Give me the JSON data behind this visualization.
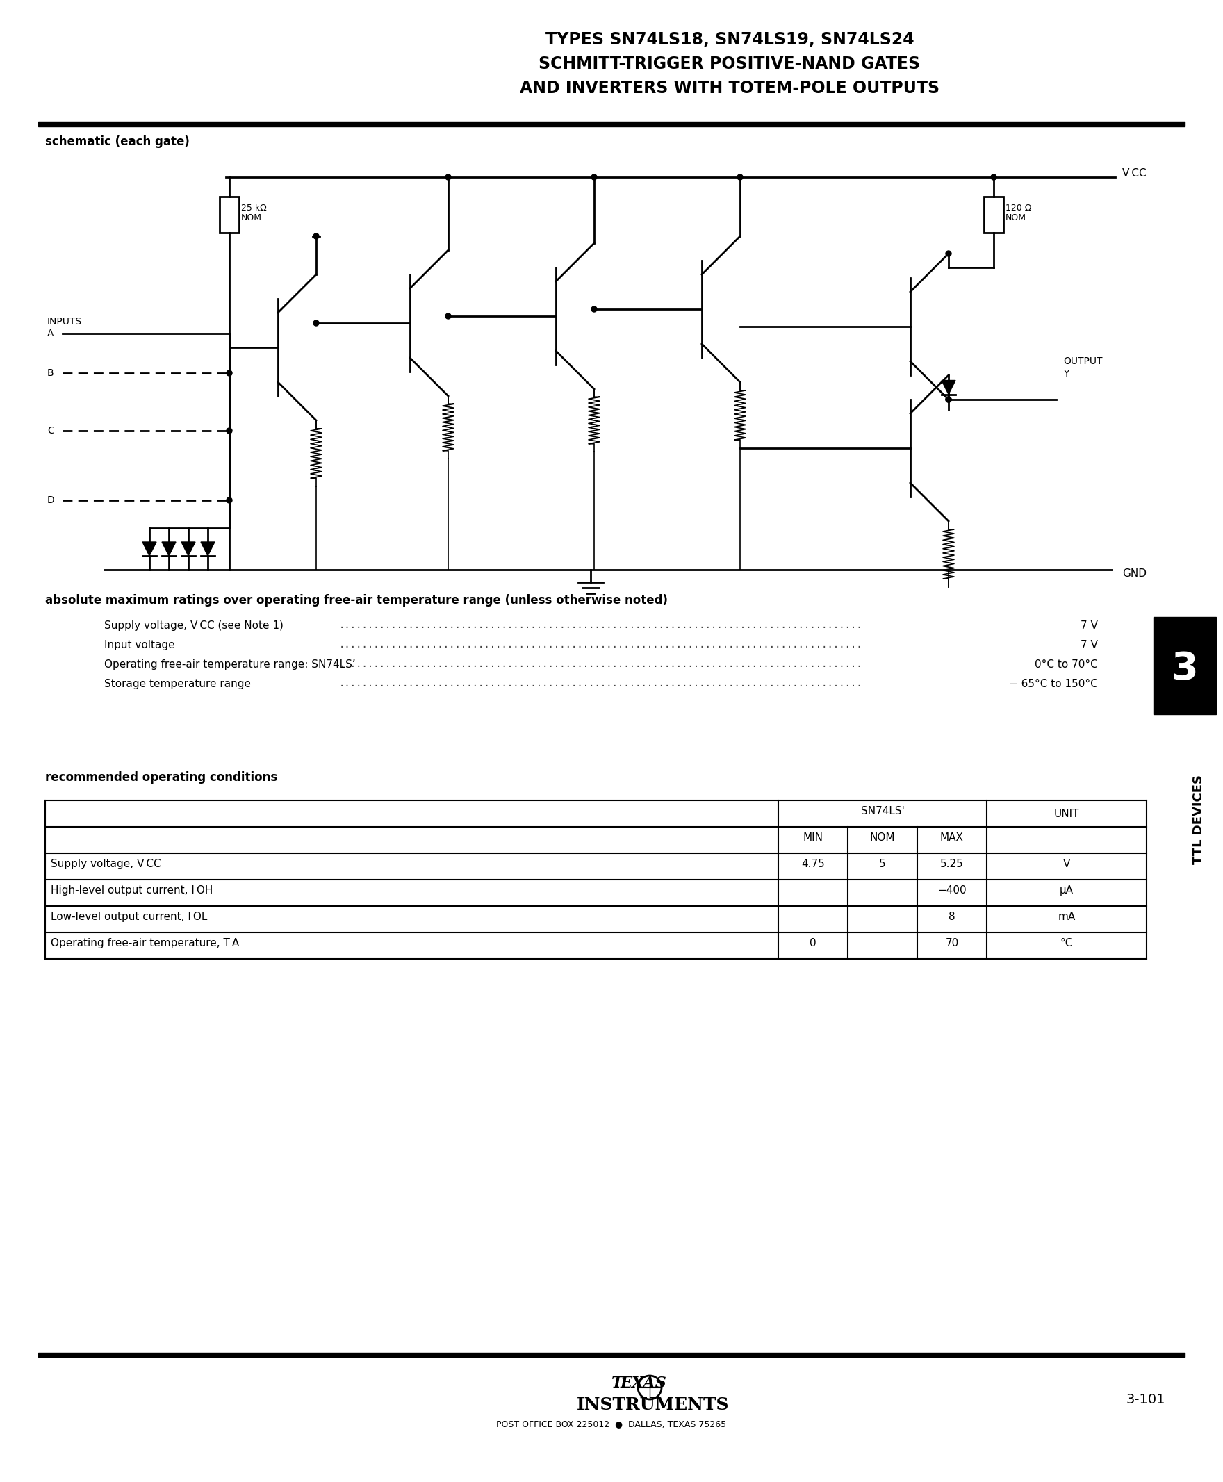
{
  "title_line1": "TYPES SN74LS18, SN74LS19, SN74LS24",
  "title_line2": "SCHMITT-TRIGGER POSITIVE-NAND GATES",
  "title_line3": "AND INVERTERS WITH TOTEM-POLE OUTPUTS",
  "schematic_label": "schematic (each gate)",
  "abs_max_title": "absolute maximum ratings over operating free-air temperature range (unless otherwise noted)",
  "abs_max_rows": [
    [
      "Supply voltage, V CC (see Note 1)",
      "7 V"
    ],
    [
      "Input voltage",
      "7 V"
    ],
    [
      "Operating free-air temperature range: SN74LS’",
      "0°C to 70°C"
    ],
    [
      "Storage temperature range",
      "− 65°C to 150°C"
    ]
  ],
  "rec_op_title": "recommended operating conditions",
  "table_rows": [
    [
      "Supply voltage, V CC",
      "4.75",
      "5",
      "5.25",
      "V"
    ],
    [
      "High-level output current, I OH",
      "",
      "",
      "−400",
      "μA"
    ],
    [
      "Low-level output current, I OL",
      "",
      "",
      "8",
      "mA"
    ],
    [
      "Operating free-air temperature, T A",
      "0",
      "",
      "70",
      "°C"
    ]
  ],
  "page_num": "3-101",
  "chapter_num": "3",
  "bg_color": "#ffffff",
  "text_color": "#000000",
  "sidebar_text": "TTL DEVICES",
  "vcc_label": "V CC",
  "gnd_label": "GND",
  "inputs_label": "INPUTS",
  "output_label": "OUTPUT",
  "resistor1_label": [
    "25 kΩ",
    "NOM"
  ],
  "resistor2_label": [
    "120 Ω",
    "NOM"
  ],
  "dot_sep": "................................................................................................................................................................................................................................................................................................"
}
